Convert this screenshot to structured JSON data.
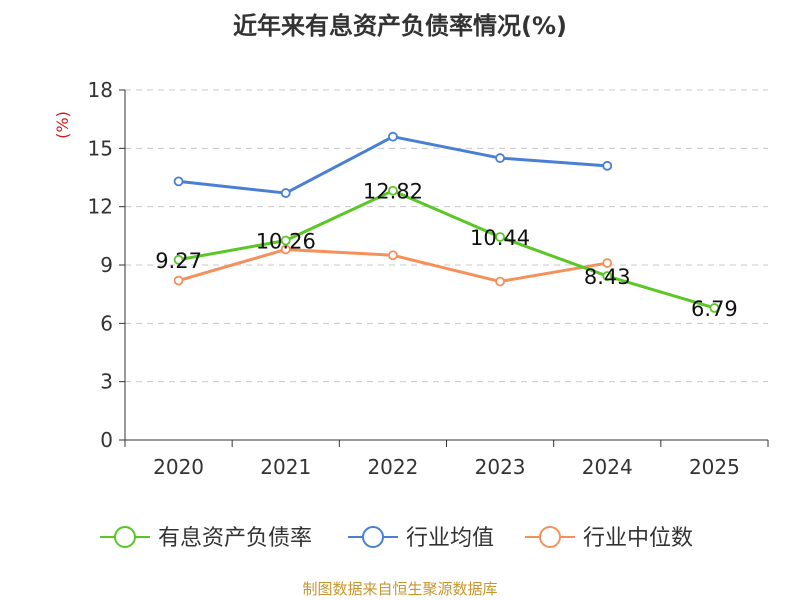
{
  "chart_data": {
    "type": "line",
    "title": "近年来有息资产负债率情况(%)",
    "ylabel": "(%)",
    "xlabel": "",
    "categories": [
      "2020",
      "2021",
      "2022",
      "2023",
      "2024",
      "2025"
    ],
    "ylim": [
      0,
      18
    ],
    "yticks": [
      0,
      3,
      6,
      9,
      12,
      15,
      18
    ],
    "grid": true,
    "legend_position": "bottom",
    "series": [
      {
        "name": "有息资产负债率",
        "color": "#5bc726",
        "values": [
          9.27,
          10.26,
          12.82,
          10.44,
          8.43,
          6.79
        ],
        "labels": [
          "9.27",
          "10.26",
          "12.82",
          "10.44",
          "8.43",
          "6.79"
        ]
      },
      {
        "name": "行业均值",
        "color": "#4a7fd6",
        "values": [
          13.3,
          12.7,
          15.6,
          14.5,
          14.1,
          null
        ]
      },
      {
        "name": "行业中位数",
        "color": "#f5905a",
        "values": [
          8.2,
          9.8,
          9.5,
          8.15,
          9.1,
          null
        ]
      }
    ]
  },
  "source": "制图数据来自恒生聚源数据库"
}
